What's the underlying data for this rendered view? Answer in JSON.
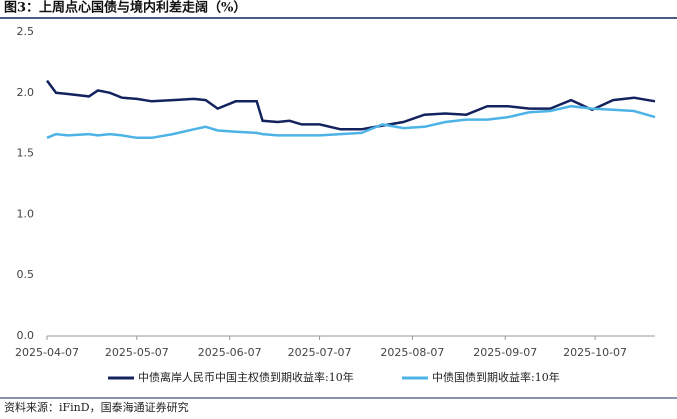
{
  "chart_data": {
    "type": "line",
    "title": "图3：上周点心国债与境内利差走阔（%）",
    "source": "资料来源：iFinD，国泰海通证券研究",
    "x": [
      "2025-04-07",
      "2025-04-10",
      "2025-04-14",
      "2025-04-21",
      "2025-04-24",
      "2025-04-28",
      "2025-05-02",
      "2025-05-07",
      "2025-05-12",
      "2025-05-19",
      "2025-05-26",
      "2025-05-30",
      "2025-06-03",
      "2025-06-09",
      "2025-06-16",
      "2025-06-18",
      "2025-06-23",
      "2025-06-27",
      "2025-07-01",
      "2025-07-07",
      "2025-07-14",
      "2025-07-21",
      "2025-07-28",
      "2025-08-04",
      "2025-08-11",
      "2025-08-18",
      "2025-08-25",
      "2025-09-01",
      "2025-09-08",
      "2025-09-15",
      "2025-09-22",
      "2025-09-29",
      "2025-10-06",
      "2025-10-13",
      "2025-10-20",
      "2025-10-27"
    ],
    "series": [
      {
        "name": "中债离岸人民币中国主权债到期收益率:10年",
        "color": "#14235e",
        "values": [
          2.1,
          2.0,
          1.99,
          1.97,
          2.02,
          2.0,
          1.96,
          1.95,
          1.93,
          1.94,
          1.95,
          1.94,
          1.87,
          1.93,
          1.93,
          1.77,
          1.76,
          1.77,
          1.74,
          1.74,
          1.7,
          1.7,
          1.73,
          1.76,
          1.82,
          1.83,
          1.82,
          1.89,
          1.89,
          1.87,
          1.87,
          1.94,
          1.86,
          1.94,
          1.96,
          1.93
        ]
      },
      {
        "name": "中债国债到期收益率:10年",
        "color": "#4db3e6",
        "values": [
          1.63,
          1.66,
          1.65,
          1.66,
          1.65,
          1.66,
          1.65,
          1.63,
          1.63,
          1.66,
          1.7,
          1.72,
          1.69,
          1.68,
          1.67,
          1.66,
          1.65,
          1.65,
          1.65,
          1.65,
          1.66,
          1.67,
          1.74,
          1.71,
          1.72,
          1.76,
          1.78,
          1.78,
          1.8,
          1.84,
          1.85,
          1.89,
          1.87,
          1.86,
          1.85,
          1.8
        ]
      }
    ],
    "xlim": [
      "2025-04-07",
      "2025-10-27"
    ],
    "xticks": [
      "2025-04-07",
      "2025-05-07",
      "2025-06-07",
      "2025-07-07",
      "2025-08-07",
      "2025-09-07",
      "2025-10-07"
    ],
    "ylim": [
      0,
      2.5
    ],
    "yticks": [
      {
        "value": 0,
        "label": "0.0"
      },
      0.5,
      {
        "value": 1,
        "label": "1.0"
      },
      1.5,
      {
        "value": 2,
        "label": "2.0"
      },
      2.5
    ],
    "grid": false
  }
}
